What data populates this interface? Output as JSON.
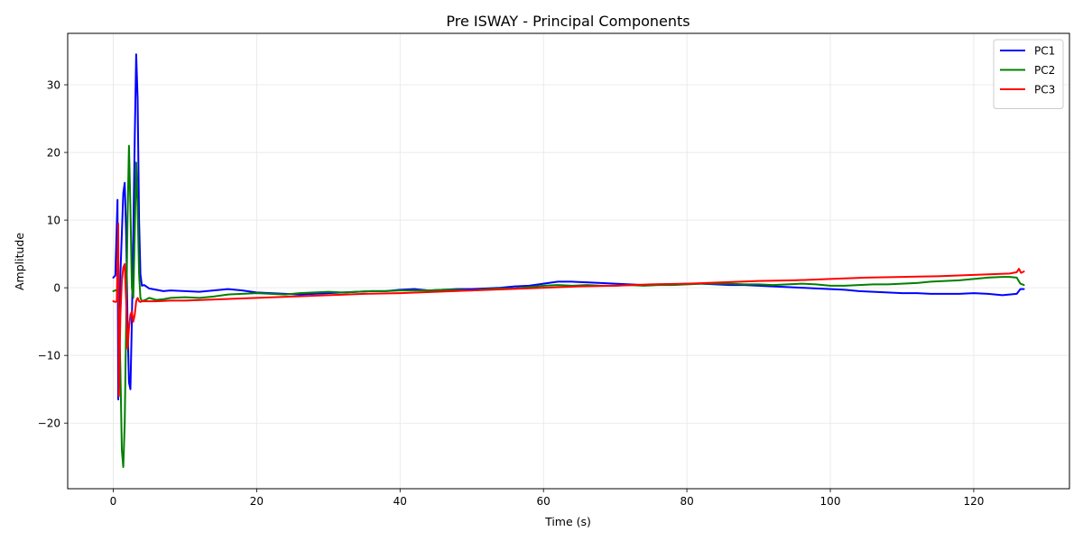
{
  "chart_data": {
    "type": "line",
    "title": "Pre ISWAY - Principal Components",
    "xlabel": "Time (s)",
    "ylabel": "Amplitude",
    "xlim": [
      -6.35,
      133.35
    ],
    "ylim": [
      -29.7,
      37.6
    ],
    "xticks": [
      0,
      20,
      40,
      60,
      80,
      100,
      120
    ],
    "yticks": [
      -20,
      -10,
      0,
      10,
      20,
      30
    ],
    "xtick_labels": [
      "0",
      "20",
      "40",
      "60",
      "80",
      "100",
      "120"
    ],
    "ytick_labels": [
      "−20",
      "−10",
      "0",
      "10",
      "20",
      "30"
    ],
    "grid": true,
    "legend_position": "top-right",
    "series": [
      {
        "name": "PC1",
        "color": "#0000ff",
        "x": [
          0,
          0.3,
          0.6,
          0.7,
          0.8,
          0.9,
          1.0,
          1.2,
          1.4,
          1.6,
          1.8,
          2.0,
          2.2,
          2.4,
          2.6,
          2.8,
          3.0,
          3.2,
          3.4,
          3.6,
          3.8,
          4.0,
          4.3,
          4.6,
          5.0,
          6,
          7,
          8,
          10,
          12,
          14,
          16,
          18,
          20,
          22,
          24,
          26,
          28,
          30,
          32,
          34,
          36,
          38,
          40,
          42,
          44,
          46,
          48,
          50,
          52,
          54,
          56,
          58,
          60,
          62,
          64,
          66,
          68,
          70,
          72,
          74,
          76,
          78,
          80,
          82,
          84,
          86,
          88,
          90,
          92,
          94,
          96,
          98,
          100,
          102,
          104,
          106,
          108,
          110,
          112,
          114,
          116,
          118,
          120,
          122,
          124,
          125,
          126,
          126.5,
          127
        ],
        "y": [
          1.5,
          1.8,
          13.0,
          -16.5,
          -12.0,
          -3.0,
          2.0,
          8.0,
          14.0,
          15.5,
          8.0,
          -5.0,
          -14.0,
          -15.0,
          -5.0,
          8.0,
          22.0,
          34.5,
          28.0,
          10.0,
          2.0,
          0.3,
          0.4,
          0.2,
          -0.1,
          -0.3,
          -0.5,
          -0.4,
          -0.5,
          -0.6,
          -0.4,
          -0.2,
          -0.4,
          -0.7,
          -0.8,
          -0.9,
          -1.0,
          -0.9,
          -0.8,
          -0.7,
          -0.6,
          -0.5,
          -0.5,
          -0.3,
          -0.2,
          -0.4,
          -0.3,
          -0.2,
          -0.2,
          -0.1,
          0.0,
          0.2,
          0.3,
          0.6,
          0.9,
          0.9,
          0.8,
          0.7,
          0.6,
          0.5,
          0.4,
          0.5,
          0.5,
          0.6,
          0.6,
          0.5,
          0.4,
          0.4,
          0.3,
          0.2,
          0.1,
          0.0,
          -0.1,
          -0.2,
          -0.3,
          -0.5,
          -0.6,
          -0.7,
          -0.8,
          -0.8,
          -0.9,
          -0.9,
          -0.9,
          -0.8,
          -0.9,
          -1.1,
          -1.0,
          -0.9,
          -0.2,
          -0.2
        ]
      },
      {
        "name": "PC2",
        "color": "#008000",
        "x": [
          0,
          0.3,
          0.6,
          0.8,
          1.0,
          1.2,
          1.4,
          1.6,
          1.8,
          2.0,
          2.2,
          2.4,
          2.6,
          2.8,
          3.0,
          3.2,
          3.4,
          3.6,
          3.8,
          4.0,
          4.5,
          5,
          6,
          7,
          8,
          10,
          12,
          14,
          16,
          18,
          20,
          22,
          24,
          26,
          28,
          30,
          32,
          34,
          36,
          38,
          40,
          42,
          44,
          46,
          48,
          50,
          52,
          54,
          56,
          58,
          60,
          62,
          64,
          66,
          68,
          70,
          72,
          74,
          76,
          78,
          80,
          82,
          84,
          86,
          88,
          90,
          92,
          94,
          96,
          98,
          100,
          102,
          104,
          106,
          108,
          110,
          112,
          114,
          116,
          118,
          120,
          122,
          124,
          125,
          126,
          126.5,
          127
        ],
        "y": [
          -0.5,
          -0.4,
          -0.3,
          -3.0,
          -12.0,
          -24.0,
          -26.5,
          -20.0,
          -5.0,
          10.0,
          21.0,
          12.0,
          0.0,
          -1.5,
          8.0,
          18.5,
          12.0,
          2.0,
          -1.5,
          -2.0,
          -1.8,
          -1.5,
          -1.8,
          -1.7,
          -1.5,
          -1.4,
          -1.5,
          -1.3,
          -1.0,
          -0.9,
          -0.8,
          -0.9,
          -1.0,
          -0.8,
          -0.7,
          -0.6,
          -0.7,
          -0.6,
          -0.5,
          -0.5,
          -0.4,
          -0.4,
          -0.4,
          -0.3,
          -0.3,
          -0.4,
          -0.2,
          -0.1,
          -0.1,
          0.1,
          0.3,
          0.4,
          0.3,
          0.4,
          0.3,
          0.3,
          0.4,
          0.3,
          0.4,
          0.4,
          0.5,
          0.6,
          0.6,
          0.6,
          0.5,
          0.5,
          0.4,
          0.5,
          0.6,
          0.5,
          0.3,
          0.3,
          0.4,
          0.5,
          0.5,
          0.6,
          0.7,
          0.9,
          1.0,
          1.1,
          1.3,
          1.5,
          1.6,
          1.6,
          1.5,
          0.6,
          0.4
        ]
      },
      {
        "name": "PC3",
        "color": "#ff0000",
        "x": [
          0,
          0.3,
          0.5,
          0.7,
          0.8,
          1.0,
          1.2,
          1.4,
          1.6,
          1.8,
          2.0,
          2.2,
          2.4,
          2.6,
          2.8,
          3.0,
          3.2,
          3.4,
          3.6,
          3.8,
          4.0,
          5,
          6,
          8,
          10,
          15,
          20,
          25,
          30,
          35,
          40,
          45,
          50,
          55,
          60,
          65,
          70,
          75,
          80,
          85,
          90,
          95,
          100,
          105,
          110,
          115,
          120,
          125,
          126,
          126.3,
          126.6,
          127
        ],
        "y": [
          -2.0,
          -2.1,
          -2.0,
          9.5,
          -16.0,
          -4.0,
          1.0,
          3.0,
          3.5,
          -2.0,
          -9.0,
          -6.0,
          -4.0,
          -3.5,
          -5.0,
          -4.0,
          -2.0,
          -1.5,
          -2.0,
          -2.1,
          -2.0,
          -2.0,
          -2.0,
          -1.9,
          -1.9,
          -1.7,
          -1.5,
          -1.3,
          -1.1,
          -0.9,
          -0.8,
          -0.6,
          -0.4,
          -0.2,
          0.0,
          0.2,
          0.3,
          0.5,
          0.6,
          0.8,
          1.0,
          1.1,
          1.3,
          1.5,
          1.6,
          1.7,
          1.9,
          2.1,
          2.3,
          2.8,
          2.2,
          2.4
        ]
      }
    ]
  }
}
